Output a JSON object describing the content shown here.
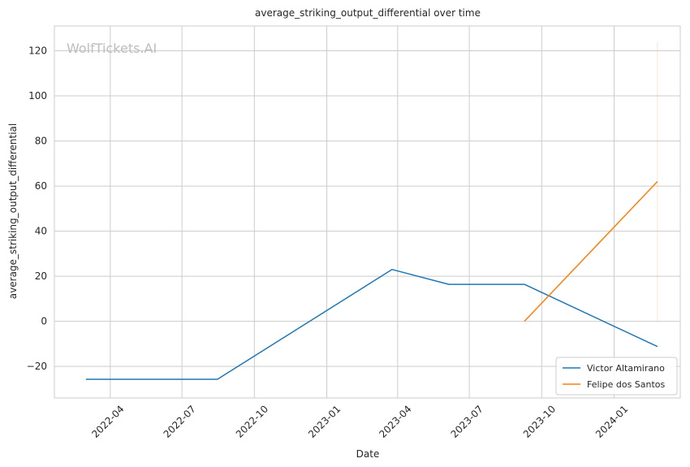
{
  "chart_data": {
    "type": "line",
    "title": "average_striking_output_differential over time",
    "xlabel": "Date",
    "ylabel": "average_striking_output_differential",
    "watermark": "WolfTickets.AI",
    "xlim": [
      "2022-01-20",
      "2024-03-25"
    ],
    "ylim": [
      -34,
      131
    ],
    "x_ticks": [
      {
        "date": "2022-04-01",
        "label": "2022-04"
      },
      {
        "date": "2022-07-01",
        "label": "2022-07"
      },
      {
        "date": "2022-10-01",
        "label": "2022-10"
      },
      {
        "date": "2023-01-01",
        "label": "2023-01"
      },
      {
        "date": "2023-04-01",
        "label": "2023-04"
      },
      {
        "date": "2023-07-01",
        "label": "2023-07"
      },
      {
        "date": "2023-10-01",
        "label": "2023-10"
      },
      {
        "date": "2024-01-01",
        "label": "2024-01"
      }
    ],
    "y_ticks": [
      {
        "value": -20,
        "label": "−20"
      },
      {
        "value": 0,
        "label": "0"
      },
      {
        "value": 20,
        "label": "20"
      },
      {
        "value": 40,
        "label": "40"
      },
      {
        "value": 60,
        "label": "60"
      },
      {
        "value": 80,
        "label": "80"
      },
      {
        "value": 100,
        "label": "100"
      },
      {
        "value": 120,
        "label": "120"
      }
    ],
    "grid": true,
    "legend_position": "bottom-right",
    "series": [
      {
        "name": "Victor Altamirano",
        "color": "#1f77b4",
        "points": [
          {
            "x": "2022-03-01",
            "y": -25.7
          },
          {
            "x": "2022-08-15",
            "y": -25.7
          },
          {
            "x": "2023-03-25",
            "y": 23.0
          },
          {
            "x": "2023-06-05",
            "y": 16.4
          },
          {
            "x": "2023-09-09",
            "y": 16.4
          },
          {
            "x": "2024-02-25",
            "y": -11.2
          }
        ]
      },
      {
        "name": "Felipe dos Santos",
        "color": "#ff7f0e",
        "points": [
          {
            "x": "2023-09-09",
            "y": 0.0
          },
          {
            "x": "2024-02-25",
            "y": 62.0
          }
        ]
      }
    ],
    "error_bars": [
      {
        "series": "Felipe dos Santos",
        "x": "2024-02-25",
        "low": 0.0,
        "high": 124.0,
        "color": "#ff7f0e",
        "opacity": 0.2
      }
    ]
  }
}
